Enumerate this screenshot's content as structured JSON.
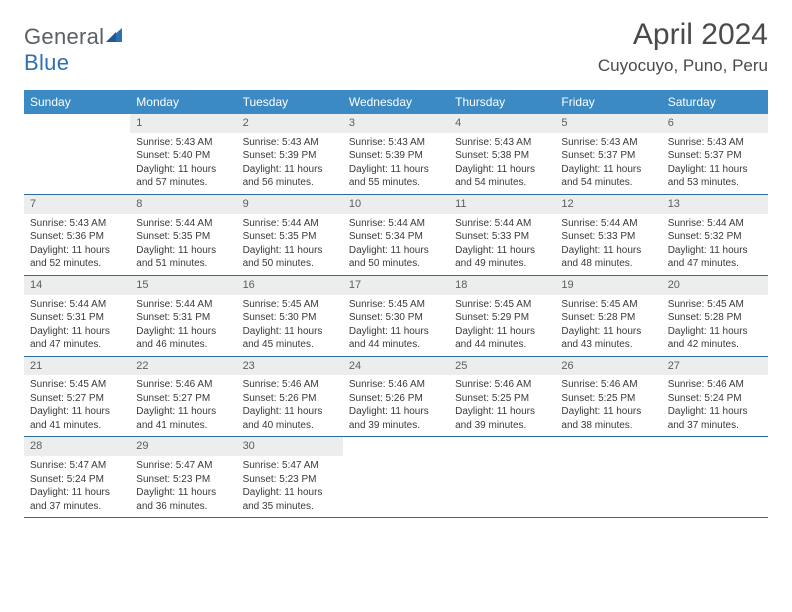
{
  "brand": {
    "name_a": "General",
    "name_b": "Blue"
  },
  "title": "April 2024",
  "location": "Cuyocuyo, Puno, Peru",
  "colors": {
    "header_bg": "#3b8ac4",
    "header_fg": "#ffffff",
    "daynum_bg": "#eceded",
    "rule": "#2c6aa0",
    "text": "#3a3a3a"
  },
  "weekdays": [
    "Sunday",
    "Monday",
    "Tuesday",
    "Wednesday",
    "Thursday",
    "Friday",
    "Saturday"
  ],
  "grid": [
    [
      {
        "n": "",
        "sr": "",
        "ss": "",
        "dl": "",
        "empty": true
      },
      {
        "n": "1",
        "sr": "Sunrise: 5:43 AM",
        "ss": "Sunset: 5:40 PM",
        "dl": "Daylight: 11 hours and 57 minutes."
      },
      {
        "n": "2",
        "sr": "Sunrise: 5:43 AM",
        "ss": "Sunset: 5:39 PM",
        "dl": "Daylight: 11 hours and 56 minutes."
      },
      {
        "n": "3",
        "sr": "Sunrise: 5:43 AM",
        "ss": "Sunset: 5:39 PM",
        "dl": "Daylight: 11 hours and 55 minutes."
      },
      {
        "n": "4",
        "sr": "Sunrise: 5:43 AM",
        "ss": "Sunset: 5:38 PM",
        "dl": "Daylight: 11 hours and 54 minutes."
      },
      {
        "n": "5",
        "sr": "Sunrise: 5:43 AM",
        "ss": "Sunset: 5:37 PM",
        "dl": "Daylight: 11 hours and 54 minutes."
      },
      {
        "n": "6",
        "sr": "Sunrise: 5:43 AM",
        "ss": "Sunset: 5:37 PM",
        "dl": "Daylight: 11 hours and 53 minutes."
      }
    ],
    [
      {
        "n": "7",
        "sr": "Sunrise: 5:43 AM",
        "ss": "Sunset: 5:36 PM",
        "dl": "Daylight: 11 hours and 52 minutes."
      },
      {
        "n": "8",
        "sr": "Sunrise: 5:44 AM",
        "ss": "Sunset: 5:35 PM",
        "dl": "Daylight: 11 hours and 51 minutes."
      },
      {
        "n": "9",
        "sr": "Sunrise: 5:44 AM",
        "ss": "Sunset: 5:35 PM",
        "dl": "Daylight: 11 hours and 50 minutes."
      },
      {
        "n": "10",
        "sr": "Sunrise: 5:44 AM",
        "ss": "Sunset: 5:34 PM",
        "dl": "Daylight: 11 hours and 50 minutes."
      },
      {
        "n": "11",
        "sr": "Sunrise: 5:44 AM",
        "ss": "Sunset: 5:33 PM",
        "dl": "Daylight: 11 hours and 49 minutes."
      },
      {
        "n": "12",
        "sr": "Sunrise: 5:44 AM",
        "ss": "Sunset: 5:33 PM",
        "dl": "Daylight: 11 hours and 48 minutes."
      },
      {
        "n": "13",
        "sr": "Sunrise: 5:44 AM",
        "ss": "Sunset: 5:32 PM",
        "dl": "Daylight: 11 hours and 47 minutes."
      }
    ],
    [
      {
        "n": "14",
        "sr": "Sunrise: 5:44 AM",
        "ss": "Sunset: 5:31 PM",
        "dl": "Daylight: 11 hours and 47 minutes."
      },
      {
        "n": "15",
        "sr": "Sunrise: 5:44 AM",
        "ss": "Sunset: 5:31 PM",
        "dl": "Daylight: 11 hours and 46 minutes."
      },
      {
        "n": "16",
        "sr": "Sunrise: 5:45 AM",
        "ss": "Sunset: 5:30 PM",
        "dl": "Daylight: 11 hours and 45 minutes."
      },
      {
        "n": "17",
        "sr": "Sunrise: 5:45 AM",
        "ss": "Sunset: 5:30 PM",
        "dl": "Daylight: 11 hours and 44 minutes."
      },
      {
        "n": "18",
        "sr": "Sunrise: 5:45 AM",
        "ss": "Sunset: 5:29 PM",
        "dl": "Daylight: 11 hours and 44 minutes."
      },
      {
        "n": "19",
        "sr": "Sunrise: 5:45 AM",
        "ss": "Sunset: 5:28 PM",
        "dl": "Daylight: 11 hours and 43 minutes."
      },
      {
        "n": "20",
        "sr": "Sunrise: 5:45 AM",
        "ss": "Sunset: 5:28 PM",
        "dl": "Daylight: 11 hours and 42 minutes."
      }
    ],
    [
      {
        "n": "21",
        "sr": "Sunrise: 5:45 AM",
        "ss": "Sunset: 5:27 PM",
        "dl": "Daylight: 11 hours and 41 minutes."
      },
      {
        "n": "22",
        "sr": "Sunrise: 5:46 AM",
        "ss": "Sunset: 5:27 PM",
        "dl": "Daylight: 11 hours and 41 minutes."
      },
      {
        "n": "23",
        "sr": "Sunrise: 5:46 AM",
        "ss": "Sunset: 5:26 PM",
        "dl": "Daylight: 11 hours and 40 minutes."
      },
      {
        "n": "24",
        "sr": "Sunrise: 5:46 AM",
        "ss": "Sunset: 5:26 PM",
        "dl": "Daylight: 11 hours and 39 minutes."
      },
      {
        "n": "25",
        "sr": "Sunrise: 5:46 AM",
        "ss": "Sunset: 5:25 PM",
        "dl": "Daylight: 11 hours and 39 minutes."
      },
      {
        "n": "26",
        "sr": "Sunrise: 5:46 AM",
        "ss": "Sunset: 5:25 PM",
        "dl": "Daylight: 11 hours and 38 minutes."
      },
      {
        "n": "27",
        "sr": "Sunrise: 5:46 AM",
        "ss": "Sunset: 5:24 PM",
        "dl": "Daylight: 11 hours and 37 minutes."
      }
    ],
    [
      {
        "n": "28",
        "sr": "Sunrise: 5:47 AM",
        "ss": "Sunset: 5:24 PM",
        "dl": "Daylight: 11 hours and 37 minutes."
      },
      {
        "n": "29",
        "sr": "Sunrise: 5:47 AM",
        "ss": "Sunset: 5:23 PM",
        "dl": "Daylight: 11 hours and 36 minutes."
      },
      {
        "n": "30",
        "sr": "Sunrise: 5:47 AM",
        "ss": "Sunset: 5:23 PM",
        "dl": "Daylight: 11 hours and 35 minutes."
      },
      {
        "n": "",
        "sr": "",
        "ss": "",
        "dl": "",
        "empty": true
      },
      {
        "n": "",
        "sr": "",
        "ss": "",
        "dl": "",
        "empty": true
      },
      {
        "n": "",
        "sr": "",
        "ss": "",
        "dl": "",
        "empty": true
      },
      {
        "n": "",
        "sr": "",
        "ss": "",
        "dl": "",
        "empty": true
      }
    ]
  ]
}
